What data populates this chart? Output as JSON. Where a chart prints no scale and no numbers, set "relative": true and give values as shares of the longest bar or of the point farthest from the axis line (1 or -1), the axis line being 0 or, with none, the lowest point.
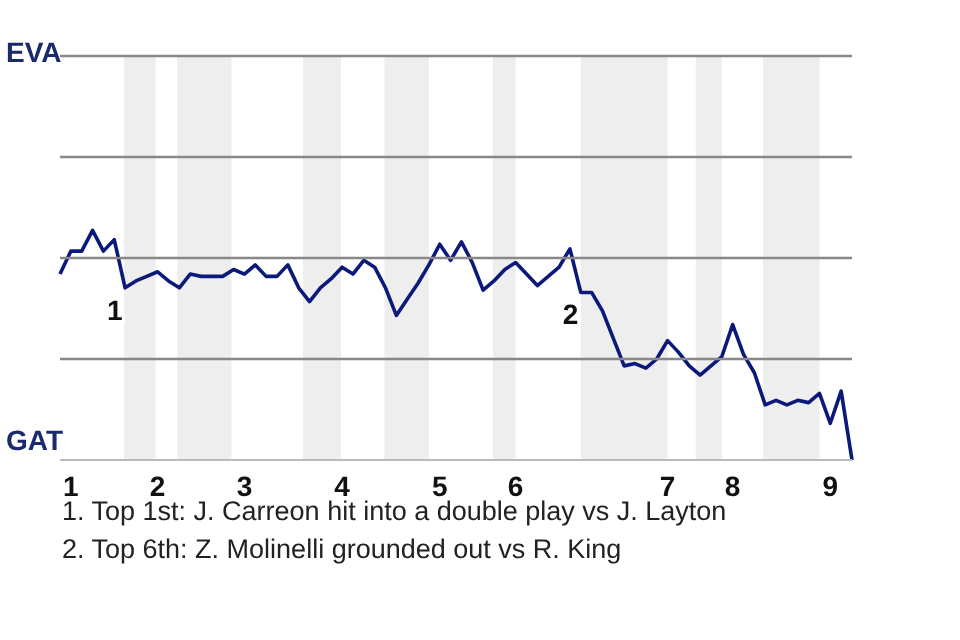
{
  "chart_data": {
    "type": "line",
    "relative": true,
    "categories": [
      null,
      "1",
      null,
      null,
      null,
      null,
      null,
      null,
      null,
      "2",
      null,
      null,
      null,
      null,
      null,
      null,
      null,
      "3",
      null,
      null,
      null,
      null,
      null,
      null,
      null,
      null,
      "4",
      null,
      null,
      null,
      null,
      null,
      null,
      null,
      null,
      "5",
      null,
      null,
      null,
      null,
      null,
      null,
      "6",
      null,
      null,
      null,
      null,
      null,
      null,
      null,
      null,
      null,
      null,
      null,
      null,
      null,
      "7",
      null,
      null,
      null,
      null,
      null,
      "8",
      null,
      null,
      null,
      null,
      null,
      null,
      null,
      null,
      "9",
      null,
      null
    ],
    "series": [
      {
        "color": "#0b1a7a",
        "values": [
          0.81,
          0.91,
          0.91,
          1,
          0.91,
          0.96,
          0.75,
          0.78,
          0.8,
          0.82,
          0.78,
          0.75,
          0.81,
          0.8,
          0.8,
          0.8,
          0.83,
          0.81,
          0.85,
          0.8,
          0.8,
          0.85,
          0.75,
          0.69,
          0.75,
          0.79,
          0.84,
          0.81,
          0.87,
          0.84,
          0.75,
          0.63,
          0.7,
          0.77,
          0.85,
          0.94,
          0.87,
          0.95,
          0.86,
          0.74,
          0.78,
          0.83,
          0.86,
          0.81,
          0.76,
          0.8,
          0.84,
          0.92,
          0.73,
          0.73,
          0.65,
          0.53,
          0.41,
          0.42,
          0.4,
          0.44,
          0.52,
          0.47,
          0.41,
          0.37,
          0.41,
          0.45,
          0.59,
          0.46,
          0.38,
          0.24,
          0.26,
          0.24,
          0.26,
          0.25,
          0.29,
          0.16,
          0.3,
          0
        ]
      }
    ],
    "ref_lines": [
      {
        "axis": "y",
        "value": 0.44,
        "color": "#888888"
      },
      {
        "axis": "y",
        "value": 0.88,
        "color": "#888888"
      },
      {
        "axis": "y",
        "value": 1.32,
        "color": "#888888"
      },
      {
        "axis": "y",
        "value": 1.76,
        "color": "#888888"
      }
    ],
    "annotations": [
      "EVA",
      "GAT",
      {
        "text": "1",
        "y": 0.75
      },
      {
        "text": "2",
        "y": 0.73
      },
      "1. Top 1st: J. Carreon hit into a double play vs J. Layton",
      "2. Top 6th: Z. Molinelli grounded out vs R. King"
    ],
    "marker": "none",
    "line_style": "solid"
  }
}
